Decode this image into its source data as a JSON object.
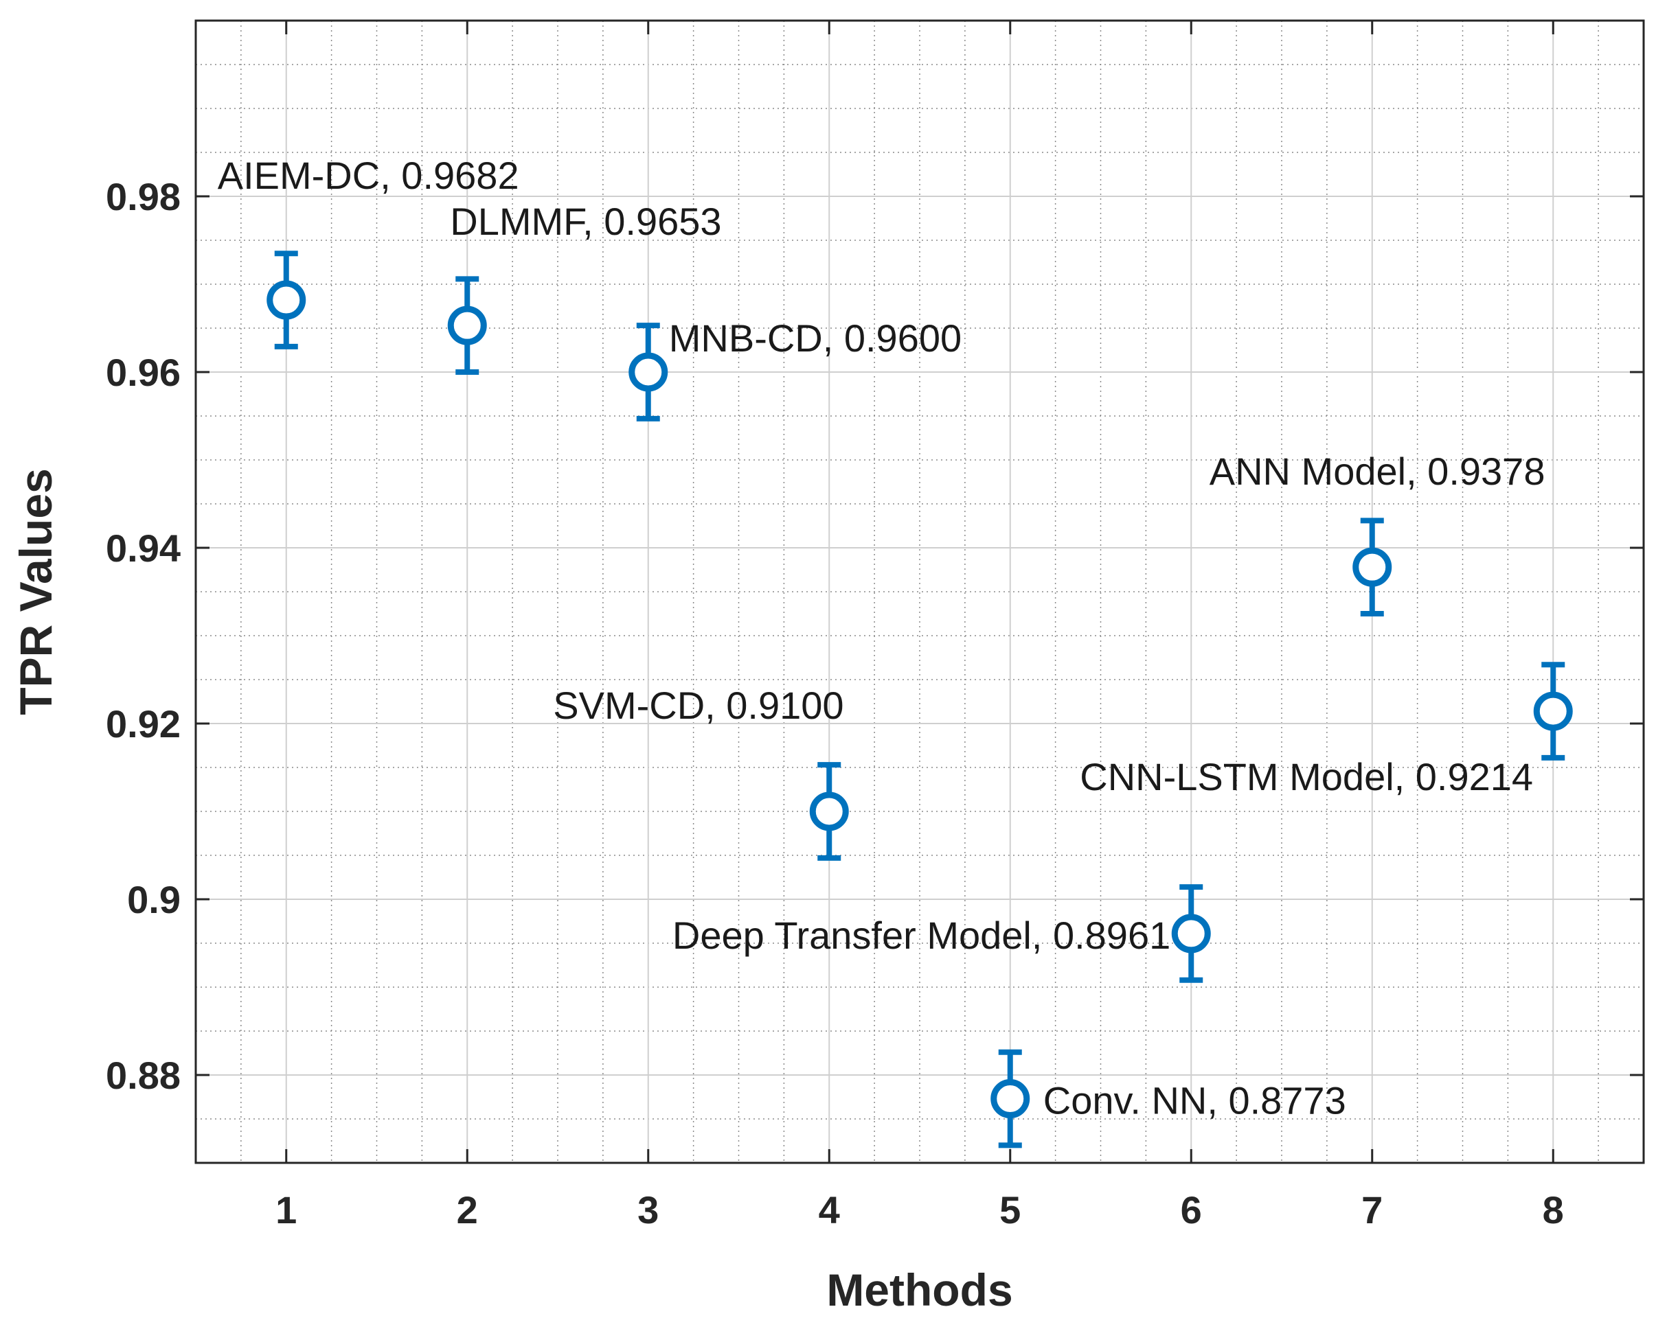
{
  "chart_data": {
    "type": "scatter",
    "title": "",
    "xlabel": "Methods",
    "ylabel": "TPR Values",
    "xlim": [
      0.5,
      8.5
    ],
    "ylim": [
      0.87,
      1.0
    ],
    "xticks": [
      "1",
      "2",
      "3",
      "4",
      "5",
      "6",
      "7",
      "8"
    ],
    "yticks": [
      "0.88",
      "0.9",
      "0.92",
      "0.94",
      "0.96",
      "0.98"
    ],
    "grid": true,
    "marker_color": "#0072BD",
    "error_halfwidth": 0.0053,
    "points": [
      {
        "x": 1,
        "y": 0.9682,
        "label": "AIEM-DC, 0.9682"
      },
      {
        "x": 2,
        "y": 0.9653,
        "label": "DLMMF, 0.9653"
      },
      {
        "x": 3,
        "y": 0.96,
        "label": "MNB-CD, 0.9600"
      },
      {
        "x": 4,
        "y": 0.91,
        "label": "SVM-CD, 0.9100"
      },
      {
        "x": 5,
        "y": 0.8773,
        "label": "Conv. NN, 0.8773"
      },
      {
        "x": 6,
        "y": 0.8961,
        "label": "Deep Transfer Model, 0.8961"
      },
      {
        "x": 7,
        "y": 0.9378,
        "label": "ANN Model, 0.9378"
      },
      {
        "x": 8,
        "y": 0.9214,
        "label": "CNN-LSTM Model, 0.9214"
      }
    ]
  }
}
